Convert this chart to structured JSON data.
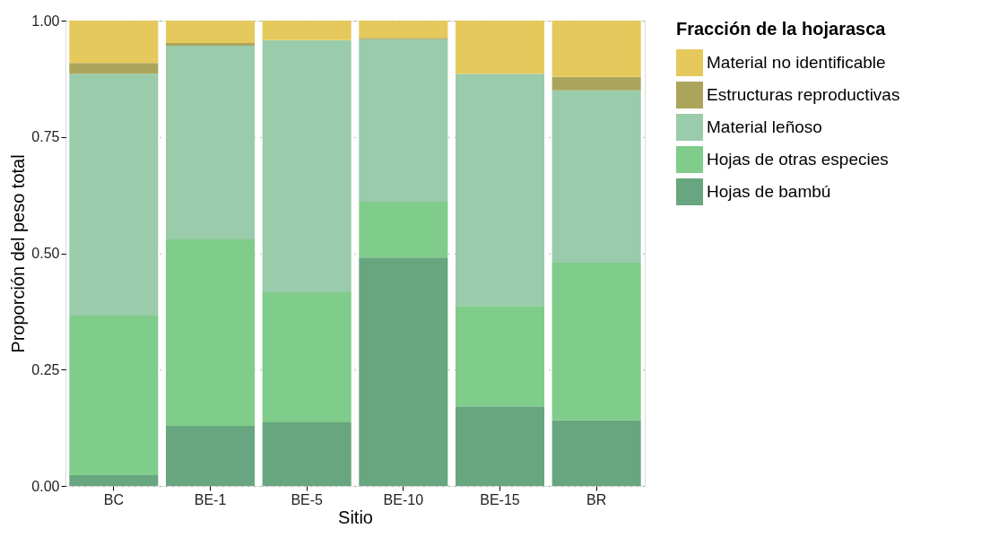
{
  "chart_data": {
    "type": "bar",
    "stacked": true,
    "xlabel": "Sitio",
    "ylabel": "Proporción del peso total",
    "legend_title": "Fracción de la hojarasca",
    "legend": "right",
    "grid": "y",
    "categories": [
      "BC",
      "BE-1",
      "BE-5",
      "BE-10",
      "BE-15",
      "BR"
    ],
    "ylim": [
      0,
      1
    ],
    "yticks": [
      {
        "value": 0,
        "label": "0.00"
      },
      {
        "value": 0.25,
        "label": "0.25"
      },
      {
        "value": 0.5,
        "label": "0.50"
      },
      {
        "value": 0.75,
        "label": "0.75"
      },
      {
        "value": 1,
        "label": "1.00"
      }
    ],
    "series": [
      {
        "name": "Hojas de bambú",
        "color": "#68a67f",
        "values": [
          0.023,
          0.129,
          0.137,
          0.491,
          0.171,
          0.141
        ]
      },
      {
        "name": "Hojas de otras especies",
        "color": "#80cc8a",
        "values": [
          0.343,
          0.401,
          0.279,
          0.12,
          0.216,
          0.339
        ]
      },
      {
        "name": "Material leñoso",
        "color": "#9acbaa",
        "values": [
          0.52,
          0.416,
          0.542,
          0.349,
          0.499,
          0.37
        ]
      },
      {
        "name": "Estructuras reproductivas",
        "color": "#aba55c",
        "values": [
          0.023,
          0.006,
          0.0,
          0.003,
          0.0,
          0.029
        ]
      },
      {
        "name": "Material no identificable",
        "color": "#e6c95c",
        "values": [
          0.091,
          0.048,
          0.042,
          0.037,
          0.114,
          0.121
        ]
      }
    ]
  }
}
